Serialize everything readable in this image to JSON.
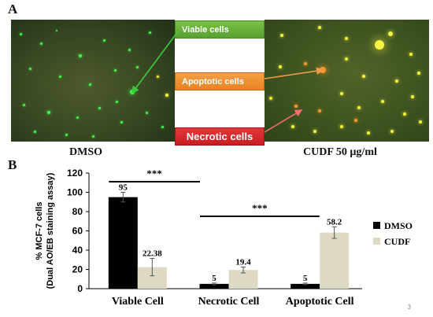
{
  "panels": {
    "a_label": "A",
    "b_label": "B",
    "left_image_label": "DMSO",
    "right_image_label": "CUDF 50 µg/ml",
    "callouts": {
      "viable": "Viable  cells",
      "apoptotic": "Apoptotic  cells",
      "necrotic": "Necrotic cells"
    },
    "colors": {
      "viable": "#6ab43c",
      "apoptotic": "#ee8f2e",
      "necrotic": "#d22a2c",
      "green_cell": "#39ff4a",
      "orange_cell": "#ff9a2a",
      "yellow_cell": "#f5f542"
    }
  },
  "slide_number": "3",
  "chart_data": {
    "type": "bar",
    "categories": [
      "Viable Cell",
      "Necrotic Cell",
      "Apoptotic Cell"
    ],
    "series": [
      {
        "name": "DMSO",
        "values": [
          95,
          5,
          5
        ],
        "labels": [
          "95",
          "5",
          "5"
        ],
        "errors": [
          5,
          0.8,
          0.8
        ],
        "color": "#000000"
      },
      {
        "name": "CUDF",
        "values": [
          22.38,
          19.4,
          58.2
        ],
        "labels": [
          "22.38",
          "19.4",
          "58.2"
        ],
        "errors": [
          9,
          3,
          6
        ],
        "color": "#ddd9c3"
      }
    ],
    "ylabel": "% MCF-7 cells",
    "ylabel2": "(Dual AO/EB staining assay)",
    "ylim": [
      0,
      120
    ],
    "yticks": [
      0,
      20,
      40,
      60,
      80,
      100,
      120
    ],
    "legend_position": "right",
    "significance": [
      {
        "label": "***",
        "from_category": 0,
        "to_category": 1
      },
      {
        "label": "***",
        "from_category": 1,
        "to_category": 2
      }
    ]
  }
}
